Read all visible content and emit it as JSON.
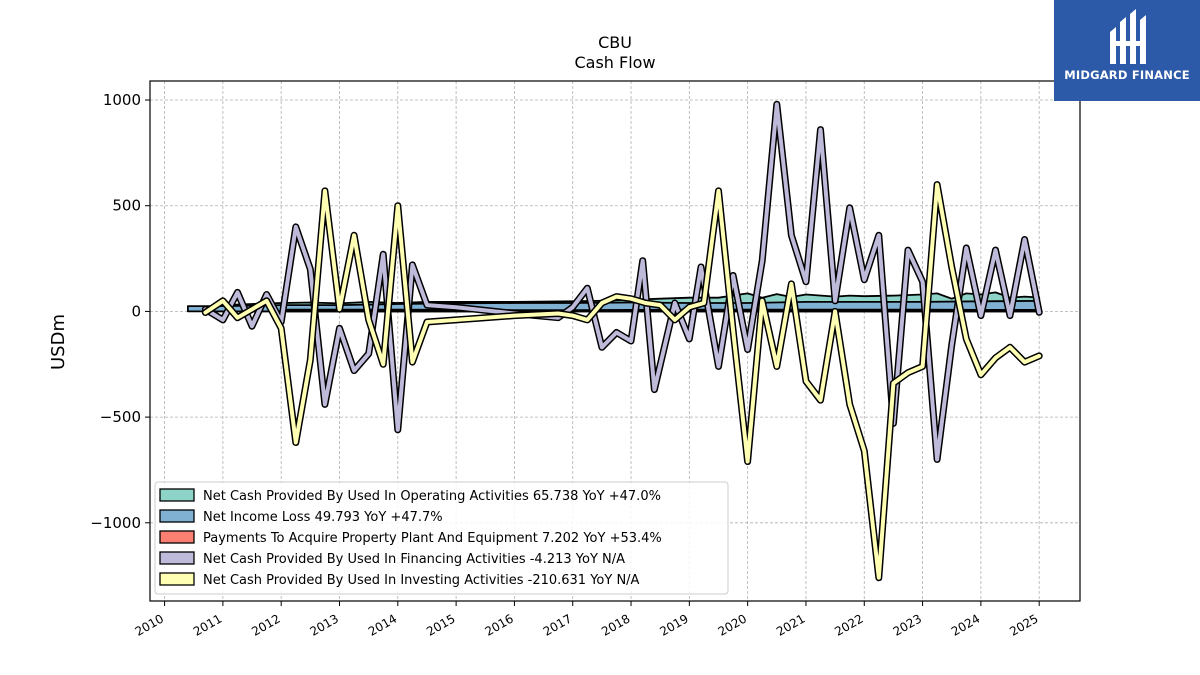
{
  "brand": {
    "name": "MIDGARD FINANCE",
    "color": "#2c5aa8"
  },
  "chart_data": {
    "type": "line",
    "title": "CBU",
    "subtitle": "Cash Flow",
    "ylabel": "USDm",
    "xlabel": "",
    "xlim": [
      2009.75,
      2025.7
    ],
    "ylim": [
      -1370,
      1090
    ],
    "yticks": [
      1000,
      500,
      0,
      -500,
      -1000
    ],
    "ytick_labels": [
      "1000",
      "500",
      "0",
      "−500",
      "−1000"
    ],
    "xticks": [
      2010,
      2011,
      2012,
      2013,
      2014,
      2015,
      2016,
      2017,
      2018,
      2019,
      2020,
      2021,
      2022,
      2023,
      2024,
      2025
    ],
    "xtick_labels": [
      "2010",
      "2011",
      "2012",
      "2013",
      "2014",
      "2015",
      "2016",
      "2017",
      "2018",
      "2019",
      "2020",
      "2021",
      "2022",
      "2023",
      "2024",
      "2025"
    ],
    "grid": true,
    "legend_position": "lower-left",
    "series": [
      {
        "name": "Net Cash Provided By Used In Operating Activities",
        "legend": "Net Cash Provided By Used In Operating Activities  65.738 YoY +47.0%",
        "color": "#8dd3c7",
        "style": "band",
        "points": [
          [
            2010.7,
            20
          ],
          [
            2011.0,
            30
          ],
          [
            2011.5,
            35
          ],
          [
            2012.0,
            40
          ],
          [
            2012.5,
            42
          ],
          [
            2013.0,
            38
          ],
          [
            2013.5,
            45
          ],
          [
            2014.0,
            40
          ],
          [
            2014.5,
            45
          ],
          [
            2015.0,
            45
          ],
          [
            2016.0,
            45
          ],
          [
            2017.0,
            48
          ],
          [
            2017.5,
            50
          ],
          [
            2018.0,
            55
          ],
          [
            2018.5,
            60
          ],
          [
            2019.0,
            65
          ],
          [
            2019.5,
            65
          ],
          [
            2020.0,
            85
          ],
          [
            2020.25,
            65
          ],
          [
            2020.5,
            82
          ],
          [
            2020.75,
            68
          ],
          [
            2021.0,
            80
          ],
          [
            2021.5,
            70
          ],
          [
            2021.75,
            75
          ],
          [
            2022.0,
            72
          ],
          [
            2022.5,
            75
          ],
          [
            2023.0,
            80
          ],
          [
            2023.25,
            85
          ],
          [
            2023.5,
            60
          ],
          [
            2023.75,
            85
          ],
          [
            2024.0,
            80
          ],
          [
            2024.25,
            90
          ],
          [
            2024.5,
            65
          ],
          [
            2024.75,
            70
          ],
          [
            2025.0,
            65.738
          ]
        ]
      },
      {
        "name": "Net Income Loss",
        "legend": "Net Income Loss  49.793 YoY +47.7%",
        "color": "#80b1d3",
        "style": "band",
        "points": [
          [
            2010.4,
            25
          ],
          [
            2011.0,
            25
          ],
          [
            2012.0,
            30
          ],
          [
            2013.0,
            30
          ],
          [
            2014.0,
            35
          ],
          [
            2015.0,
            38
          ],
          [
            2016.0,
            40
          ],
          [
            2017.0,
            40
          ],
          [
            2018.0,
            42
          ],
          [
            2019.0,
            40
          ],
          [
            2020.0,
            40
          ],
          [
            2021.0,
            45
          ],
          [
            2022.0,
            45
          ],
          [
            2023.0,
            45
          ],
          [
            2024.0,
            48
          ],
          [
            2025.0,
            49.793
          ]
        ]
      },
      {
        "name": "Payments To Acquire Property Plant And Equipment",
        "legend": "Payments To Acquire Property Plant And Equipment  7.202 YoY +53.4%",
        "color": "#fb8072",
        "style": "band",
        "points": [
          [
            2012.1,
            8
          ],
          [
            2013.0,
            8
          ],
          [
            2014.0,
            8
          ],
          [
            2015.0,
            7
          ],
          [
            2016.0,
            6
          ],
          [
            2017.0,
            6
          ],
          [
            2018.0,
            7
          ],
          [
            2019.0,
            8
          ],
          [
            2020.0,
            8
          ],
          [
            2021.0,
            8
          ],
          [
            2022.0,
            8
          ],
          [
            2023.0,
            8
          ],
          [
            2024.0,
            7
          ],
          [
            2025.0,
            7.202
          ]
        ]
      },
      {
        "name": "Net Cash Provided By Used In Financing Activities",
        "legend": "Net Cash Provided By Used In Financing Activities  -4.213 YoY N/A",
        "color": "#bebada",
        "style": "line",
        "points": [
          [
            2010.7,
            10
          ],
          [
            2011.0,
            -40
          ],
          [
            2011.25,
            90
          ],
          [
            2011.5,
            -70
          ],
          [
            2011.75,
            80
          ],
          [
            2012.0,
            -50
          ],
          [
            2012.25,
            400
          ],
          [
            2012.5,
            200
          ],
          [
            2012.75,
            -440
          ],
          [
            2013.0,
            -80
          ],
          [
            2013.25,
            -280
          ],
          [
            2013.5,
            -200
          ],
          [
            2013.75,
            270
          ],
          [
            2014.0,
            -560
          ],
          [
            2014.25,
            220
          ],
          [
            2014.5,
            30
          ],
          [
            2015.0,
            20
          ],
          [
            2016.0,
            -10
          ],
          [
            2016.75,
            -30
          ],
          [
            2017.0,
            20
          ],
          [
            2017.25,
            110
          ],
          [
            2017.5,
            -170
          ],
          [
            2017.75,
            -100
          ],
          [
            2018.0,
            -140
          ],
          [
            2018.2,
            240
          ],
          [
            2018.4,
            -370
          ],
          [
            2018.75,
            40
          ],
          [
            2019.0,
            -130
          ],
          [
            2019.2,
            210
          ],
          [
            2019.5,
            -260
          ],
          [
            2019.75,
            170
          ],
          [
            2020.0,
            -180
          ],
          [
            2020.25,
            240
          ],
          [
            2020.5,
            980
          ],
          [
            2020.75,
            360
          ],
          [
            2021.0,
            140
          ],
          [
            2021.25,
            860
          ],
          [
            2021.5,
            50
          ],
          [
            2021.75,
            490
          ],
          [
            2022.0,
            150
          ],
          [
            2022.25,
            360
          ],
          [
            2022.5,
            -530
          ],
          [
            2022.75,
            290
          ],
          [
            2023.0,
            140
          ],
          [
            2023.25,
            -700
          ],
          [
            2023.5,
            -160
          ],
          [
            2023.75,
            300
          ],
          [
            2024.0,
            -20
          ],
          [
            2024.25,
            290
          ],
          [
            2024.5,
            -20
          ],
          [
            2024.75,
            340
          ],
          [
            2025.0,
            -4.213
          ]
        ]
      },
      {
        "name": "Net Cash Provided By Used In Investing Activities",
        "legend": "Net Cash Provided By Used In Investing Activities  -210.631 YoY N/A",
        "color": "#ffffb3",
        "style": "line",
        "points": [
          [
            2010.7,
            -5
          ],
          [
            2011.0,
            50
          ],
          [
            2011.25,
            -30
          ],
          [
            2011.75,
            50
          ],
          [
            2012.0,
            -80
          ],
          [
            2012.25,
            -620
          ],
          [
            2012.5,
            -230
          ],
          [
            2012.75,
            570
          ],
          [
            2013.0,
            10
          ],
          [
            2013.25,
            360
          ],
          [
            2013.5,
            -40
          ],
          [
            2013.75,
            -250
          ],
          [
            2014.0,
            500
          ],
          [
            2014.25,
            -240
          ],
          [
            2014.5,
            -50
          ],
          [
            2015.0,
            -40
          ],
          [
            2016.0,
            -20
          ],
          [
            2016.75,
            -10
          ],
          [
            2017.0,
            -20
          ],
          [
            2017.25,
            -40
          ],
          [
            2017.5,
            40
          ],
          [
            2017.75,
            70
          ],
          [
            2018.0,
            60
          ],
          [
            2018.25,
            40
          ],
          [
            2018.5,
            30
          ],
          [
            2018.75,
            -40
          ],
          [
            2019.0,
            20
          ],
          [
            2019.25,
            40
          ],
          [
            2019.5,
            570
          ],
          [
            2019.75,
            -90
          ],
          [
            2020.0,
            -710
          ],
          [
            2020.25,
            50
          ],
          [
            2020.5,
            -260
          ],
          [
            2020.75,
            130
          ],
          [
            2021.0,
            -330
          ],
          [
            2021.25,
            -420
          ],
          [
            2021.5,
            0
          ],
          [
            2021.75,
            -440
          ],
          [
            2022.0,
            -660
          ],
          [
            2022.25,
            -1260
          ],
          [
            2022.5,
            -340
          ],
          [
            2022.75,
            -290
          ],
          [
            2023.0,
            -260
          ],
          [
            2023.25,
            600
          ],
          [
            2023.5,
            210
          ],
          [
            2023.75,
            -130
          ],
          [
            2024.0,
            -300
          ],
          [
            2024.25,
            -220
          ],
          [
            2024.5,
            -170
          ],
          [
            2024.75,
            -240
          ],
          [
            2025.0,
            -210.631
          ]
        ]
      }
    ]
  }
}
